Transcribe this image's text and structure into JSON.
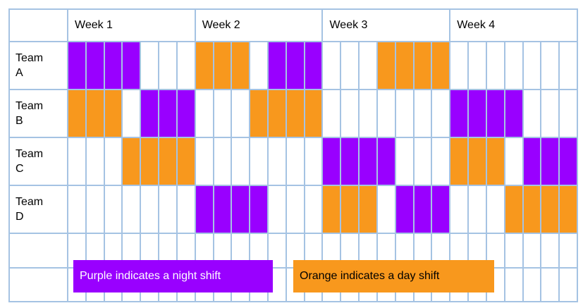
{
  "colors": {
    "grid_border": "#a5c3e3",
    "background": "#ffffff",
    "night_purple": "#9900ff",
    "day_orange": "#f8981d",
    "text": "#000000",
    "legend_night_text": "#ffffff",
    "legend_day_text": "#000000"
  },
  "chart_data": {
    "type": "table",
    "week_headers": [
      "Week 1",
      "Week 2",
      "Week 3",
      "Week 4"
    ],
    "days_per_week": 7,
    "teams": [
      {
        "label_lines": [
          "Team",
          "A"
        ],
        "schedule": "PPPP...OOO.PPP...OOOO......."
      },
      {
        "label_lines": [
          "Team",
          "B"
        ],
        "schedule": "OOO.PPP...OOOO.......PPPP..."
      },
      {
        "label_lines": [
          "Team",
          "C"
        ],
        "schedule": "...OOOO.......PPPP...OOO.PPP"
      },
      {
        "label_lines": [
          "Team",
          "D"
        ],
        "schedule": ".......PPPP...OOO.PPP...OOOO"
      }
    ],
    "cell_key": {
      "P": {
        "meaning": "night shift",
        "color": "#9900ff"
      },
      "O": {
        "meaning": "day shift",
        "color": "#f8981d"
      },
      ".": {
        "meaning": "no shift",
        "color": "#ffffff"
      }
    },
    "legend": [
      {
        "text": "Purple indicates a night shift",
        "fill": "#9900ff",
        "text_color": "#ffffff"
      },
      {
        "text": "Orange indicates a day shift",
        "fill": "#f8981d",
        "text_color": "#000000"
      }
    ]
  }
}
